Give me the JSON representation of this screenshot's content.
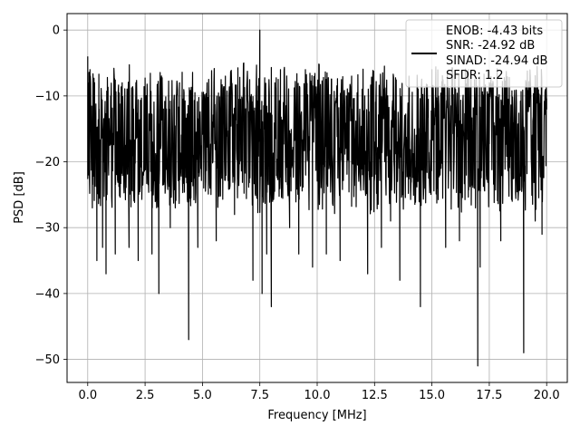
{
  "chart_data": {
    "type": "line",
    "title": "",
    "xlabel": "Frequency [MHz]",
    "ylabel": "PSD [dB]",
    "xlim": [
      -0.9,
      20.9
    ],
    "ylim": [
      -53.5,
      2.5
    ],
    "xticks": [
      0.0,
      2.5,
      5.0,
      7.5,
      10.0,
      12.5,
      15.0,
      17.5,
      20.0
    ],
    "xtick_labels": [
      "0.0",
      "2.5",
      "5.0",
      "7.5",
      "10.0",
      "12.5",
      "15.0",
      "17.5",
      "20.0"
    ],
    "yticks": [
      0,
      -10,
      -20,
      -30,
      -40,
      -50
    ],
    "ytick_labels": [
      "0",
      "−10",
      "−20",
      "−30",
      "−40",
      "−50"
    ],
    "grid": true,
    "legend_position": "top-right",
    "legend_lines": [
      "ENOB: -4.43 bits",
      "SNR: -24.92 dB",
      "SINAD: -24.94 dB",
      "SFDR: 1.2"
    ],
    "series": [
      {
        "color": "#000000",
        "noise_band_db": [
          -25,
          -8
        ],
        "x": [
          0.0,
          0.05,
          0.1,
          0.2,
          0.3,
          0.4,
          0.5,
          0.65,
          0.8,
          1.0,
          1.2,
          1.5,
          1.8,
          2.0,
          2.2,
          2.5,
          2.8,
          3.1,
          3.3,
          3.6,
          4.0,
          4.4,
          4.5,
          4.8,
          5.2,
          5.6,
          6.0,
          6.4,
          6.8,
          7.2,
          7.5,
          7.6,
          7.8,
          8.0,
          8.4,
          8.8,
          9.2,
          9.8,
          10.4,
          11.0,
          11.5,
          12.2,
          12.8,
          13.2,
          13.6,
          14.0,
          14.5,
          15.0,
          15.6,
          16.2,
          16.6,
          17.0,
          17.1,
          17.5,
          18.0,
          18.5,
          19.0,
          19.1,
          19.5,
          19.8,
          20.0
        ],
        "y": [
          -4,
          -22,
          -6,
          -27,
          -8,
          -35,
          -24,
          -33,
          -37,
          -10,
          -34,
          -8,
          -33,
          -12,
          -35,
          -9,
          -34,
          -40,
          -12,
          -30,
          -8,
          -47,
          -10,
          -33,
          -8,
          -32,
          -7,
          -28,
          -5,
          -38,
          0,
          -40,
          -34,
          -42,
          -6,
          -30,
          -34,
          -36,
          -34,
          -35,
          -7,
          -37,
          -33,
          -29,
          -38,
          -7,
          -42,
          -6,
          -33,
          -32,
          -6,
          -51,
          -36,
          -8,
          -32,
          -26,
          -49,
          -10,
          -29,
          -31,
          -12
        ]
      }
    ]
  }
}
